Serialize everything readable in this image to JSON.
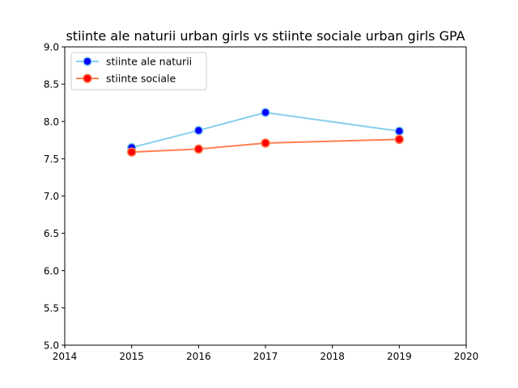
{
  "chart_data": {
    "type": "line",
    "title": "stiinte ale naturii urban girls vs stiinte sociale urban girls GPA",
    "xlabel": "",
    "ylabel": "",
    "xlim": [
      2014,
      2020
    ],
    "ylim": [
      5.0,
      9.0
    ],
    "x_ticks": [
      "2014",
      "2015",
      "2016",
      "2017",
      "2018",
      "2019",
      "2020"
    ],
    "y_ticks": [
      "5.0",
      "5.5",
      "6.0",
      "6.5",
      "7.0",
      "7.5",
      "8.0",
      "8.5",
      "9.0"
    ],
    "grid": false,
    "legend_position": "top-left",
    "series": [
      {
        "name": "stiinte ale naturii",
        "line_color": "#87ceeb",
        "marker_color": "#0000ff",
        "x": [
          2015,
          2016,
          2017,
          2019
        ],
        "y": [
          7.65,
          7.88,
          8.12,
          7.87
        ]
      },
      {
        "name": "stiinte sociale",
        "line_color": "#ff7f50",
        "marker_color": "#ff0000",
        "x": [
          2015,
          2016,
          2017,
          2019
        ],
        "y": [
          7.59,
          7.63,
          7.71,
          7.76
        ]
      }
    ]
  }
}
